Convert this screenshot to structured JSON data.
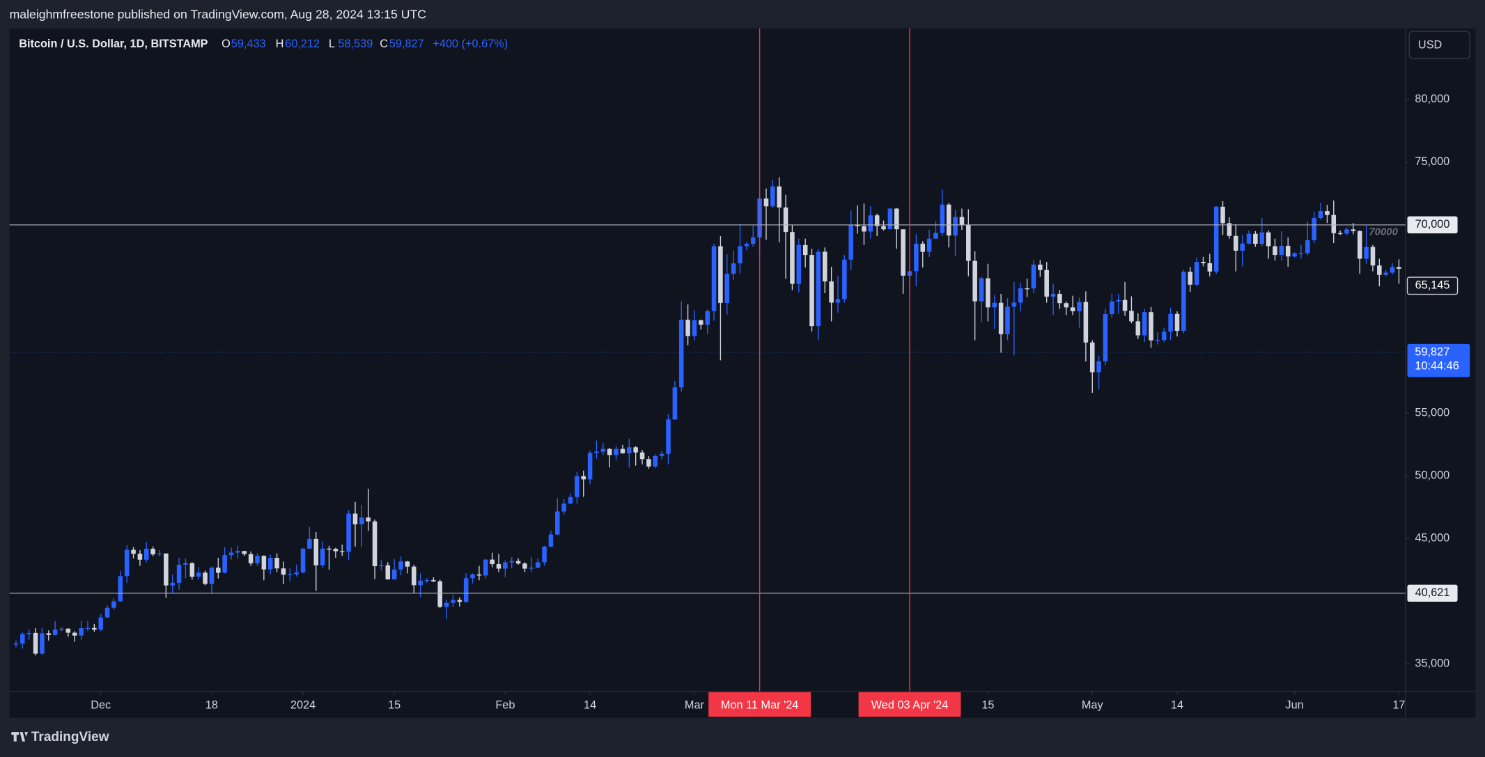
{
  "header": {
    "publisher": "maleighmfreestone published on TradingView.com, Aug 28, 2024 13:15 UTC"
  },
  "chart_data": {
    "type": "candlestick",
    "title": "Bitcoin / U.S. Dollar, 1D, BITSTAMP",
    "summary": {
      "labels": [
        "O",
        "H",
        "L",
        "C"
      ],
      "values": [
        59433,
        60212,
        58539,
        59827
      ],
      "value_labels": [
        "59,433",
        "60,212",
        "58,539",
        "59,827"
      ],
      "change": "+400 (+0.67%)"
    },
    "currency": "USD",
    "up_color": "#2962ff",
    "down_color": "#d1d4dc",
    "grid": false,
    "x": [
      "2023-11-18",
      "2023-11-19",
      "2023-11-20",
      "2023-11-21",
      "2023-11-22",
      "2023-11-23",
      "2023-11-24",
      "2023-11-25",
      "2023-11-26",
      "2023-11-27",
      "2023-11-28",
      "2023-11-29",
      "2023-11-30",
      "2023-12-01",
      "2023-12-02",
      "2023-12-03",
      "2023-12-04",
      "2023-12-05",
      "2023-12-06",
      "2023-12-07",
      "2023-12-08",
      "2023-12-09",
      "2023-12-10",
      "2023-12-11",
      "2023-12-12",
      "2023-12-13",
      "2023-12-14",
      "2023-12-15",
      "2023-12-16",
      "2023-12-17",
      "2023-12-18",
      "2023-12-19",
      "2023-12-20",
      "2023-12-21",
      "2023-12-22",
      "2023-12-23",
      "2023-12-24",
      "2023-12-25",
      "2023-12-26",
      "2023-12-27",
      "2023-12-28",
      "2023-12-29",
      "2023-12-30",
      "2023-12-31",
      "2024-01-01",
      "2024-01-02",
      "2024-01-03",
      "2024-01-04",
      "2024-01-05",
      "2024-01-06",
      "2024-01-07",
      "2024-01-08",
      "2024-01-09",
      "2024-01-10",
      "2024-01-11",
      "2024-01-12",
      "2024-01-13",
      "2024-01-14",
      "2024-01-15",
      "2024-01-16",
      "2024-01-17",
      "2024-01-18",
      "2024-01-19",
      "2024-01-20",
      "2024-01-21",
      "2024-01-22",
      "2024-01-23",
      "2024-01-24",
      "2024-01-25",
      "2024-01-26",
      "2024-01-27",
      "2024-01-28",
      "2024-01-29",
      "2024-01-30",
      "2024-01-31",
      "2024-02-01",
      "2024-02-02",
      "2024-02-03",
      "2024-02-04",
      "2024-02-05",
      "2024-02-06",
      "2024-02-07",
      "2024-02-08",
      "2024-02-09",
      "2024-02-10",
      "2024-02-11",
      "2024-02-12",
      "2024-02-13",
      "2024-02-14",
      "2024-02-15",
      "2024-02-16",
      "2024-02-17",
      "2024-02-18",
      "2024-02-19",
      "2024-02-20",
      "2024-02-21",
      "2024-02-22",
      "2024-02-23",
      "2024-02-24",
      "2024-02-25",
      "2024-02-26",
      "2024-02-27",
      "2024-02-28",
      "2024-02-29",
      "2024-03-01",
      "2024-03-02",
      "2024-03-03",
      "2024-03-04",
      "2024-03-05",
      "2024-03-06",
      "2024-03-07",
      "2024-03-08",
      "2024-03-09",
      "2024-03-10",
      "2024-03-11",
      "2024-03-12",
      "2024-03-13",
      "2024-03-14",
      "2024-03-15",
      "2024-03-16",
      "2024-03-17",
      "2024-03-18",
      "2024-03-19",
      "2024-03-20",
      "2024-03-21",
      "2024-03-22",
      "2024-03-23",
      "2024-03-24",
      "2024-03-25",
      "2024-03-26",
      "2024-03-27",
      "2024-03-28",
      "2024-03-29",
      "2024-03-30",
      "2024-03-31",
      "2024-04-01",
      "2024-04-02",
      "2024-04-03",
      "2024-04-04",
      "2024-04-05",
      "2024-04-06",
      "2024-04-07",
      "2024-04-08",
      "2024-04-09",
      "2024-04-10",
      "2024-04-11",
      "2024-04-12",
      "2024-04-13",
      "2024-04-14",
      "2024-04-15",
      "2024-04-16",
      "2024-04-17",
      "2024-04-18",
      "2024-04-19",
      "2024-04-20",
      "2024-04-21",
      "2024-04-22",
      "2024-04-23",
      "2024-04-24",
      "2024-04-25",
      "2024-04-26",
      "2024-04-27",
      "2024-04-28",
      "2024-04-29",
      "2024-04-30",
      "2024-05-01",
      "2024-05-02",
      "2024-05-03",
      "2024-05-04",
      "2024-05-05",
      "2024-05-06",
      "2024-05-07",
      "2024-05-08",
      "2024-05-09",
      "2024-05-10",
      "2024-05-11",
      "2024-05-12",
      "2024-05-13",
      "2024-05-14",
      "2024-05-15",
      "2024-05-16",
      "2024-05-17",
      "2024-05-18",
      "2024-05-19",
      "2024-05-20",
      "2024-05-21",
      "2024-05-22",
      "2024-05-23",
      "2024-05-24",
      "2024-05-25",
      "2024-05-26",
      "2024-05-27",
      "2024-05-28",
      "2024-05-29",
      "2024-05-30",
      "2024-05-31",
      "2024-06-01",
      "2024-06-02",
      "2024-06-03",
      "2024-06-04",
      "2024-06-05",
      "2024-06-06",
      "2024-06-07",
      "2024-06-08",
      "2024-06-09",
      "2024-06-10",
      "2024-06-11",
      "2024-06-12",
      "2024-06-13",
      "2024-06-14",
      "2024-06-15",
      "2024-06-16",
      "2024-06-17"
    ],
    "open": [
      36570,
      36600,
      37360,
      37450,
      35800,
      37420,
      37290,
      37720,
      37790,
      37470,
      37240,
      37830,
      37850,
      37720,
      38690,
      39460,
      39970,
      41980,
      44080,
      43770,
      43290,
      44170,
      43720,
      43790,
      41240,
      41450,
      42890,
      43020,
      41940,
      42260,
      41360,
      42660,
      42250,
      43660,
      43860,
      43990,
      43740,
      43010,
      43600,
      42520,
      43440,
      42600,
      42100,
      42140,
      42280,
      44180,
      44950,
      42850,
      44180,
      44160,
      43970,
      43930,
      46970,
      46120,
      46660,
      46350,
      42780,
      42850,
      41730,
      42510,
      43150,
      42740,
      41260,
      41620,
      41660,
      41570,
      39530,
      39850,
      40080,
      39930,
      41820,
      42120,
      42030,
      43300,
      42940,
      42580,
      43080,
      43190,
      42990,
      42580,
      42660,
      43090,
      44340,
      45300,
      47140,
      47770,
      48290,
      49960,
      49700,
      51810,
      51910,
      52130,
      51640,
      52130,
      51780,
      52260,
      51850,
      51320,
      50730,
      51570,
      51730,
      54480,
      57040,
      62430,
      61130,
      62390,
      62030,
      63120,
      68300,
      63780,
      66100,
      66930,
      68300,
      68490,
      69000,
      72100,
      71480,
      73070,
      71390,
      69430,
      65300,
      68390,
      67600,
      61930,
      67860,
      65490,
      63800,
      64080,
      67230,
      69990,
      69900,
      69470,
      70760,
      69900,
      69650,
      71300,
      69650,
      65950,
      66300,
      68500,
      67850,
      68900,
      69360,
      71620,
      69150,
      70630,
      70000,
      67130,
      63900,
      65740,
      63420,
      63790,
      61280,
      63470,
      63800,
      64940,
      64930,
      66830,
      66400,
      64280,
      64500,
      63760,
      63420,
      63110,
      63850,
      60620,
      58250,
      59120,
      62890,
      63890,
      64010,
      63140,
      62310,
      61190,
      63040,
      60790,
      60820,
      61480,
      62900,
      61550,
      66260,
      65230,
      67050,
      66940,
      66280,
      71450,
      70140,
      69120,
      67940,
      68510,
      69290,
      68490,
      69400,
      68300,
      67600,
      68330,
      67480,
      67730,
      67740,
      68780,
      70550,
      71100,
      70790,
      69340,
      69310,
      69640,
      69510,
      67300,
      68240,
      66760,
      66010,
      66190,
      66640
    ],
    "high": [
      36850,
      37500,
      37750,
      37850,
      37850,
      37650,
      38400,
      37900,
      37830,
      37600,
      38400,
      38400,
      38170,
      38950,
      39650,
      40200,
      42400,
      44450,
      44300,
      44050,
      44700,
      44350,
      44050,
      43800,
      42100,
      43450,
      43400,
      43100,
      42700,
      42420,
      42750,
      43450,
      44300,
      44250,
      44400,
      44000,
      43950,
      43800,
      43650,
      43700,
      43800,
      43150,
      42600,
      42900,
      44200,
      45900,
      45500,
      44750,
      44400,
      44250,
      44500,
      47250,
      47900,
      47650,
      48950,
      46500,
      43300,
      43100,
      43350,
      43550,
      43200,
      42900,
      42200,
      41850,
      41880,
      41700,
      40100,
      40500,
      40300,
      42200,
      42200,
      42800,
      43350,
      43850,
      43750,
      43250,
      43500,
      43400,
      43100,
      43500,
      43400,
      44400,
      45600,
      48200,
      48150,
      48550,
      50300,
      50400,
      52000,
      52800,
      52600,
      52200,
      52350,
      52450,
      52950,
      52350,
      52050,
      51550,
      51700,
      51950,
      54900,
      57550,
      63900,
      63650,
      63200,
      62450,
      63250,
      68500,
      69100,
      67650,
      67950,
      70100,
      68650,
      70000,
      72800,
      72900,
      73600,
      73800,
      72400,
      70000,
      68900,
      68900,
      68100,
      68100,
      68200,
      66650,
      65950,
      67600,
      71150,
      71550,
      71700,
      71500,
      70900,
      70350,
      71350,
      71350,
      69650,
      66900,
      69250,
      68700,
      69600,
      70300,
      72800,
      71750,
      71200,
      71300,
      71250,
      67900,
      65850,
      66900,
      64400,
      64500,
      64150,
      65450,
      65400,
      65700,
      67200,
      67200,
      67050,
      65300,
      64800,
      63900,
      64350,
      64200,
      64700,
      60800,
      59550,
      63300,
      64500,
      64500,
      65450,
      64300,
      62950,
      63300,
      63450,
      61450,
      61800,
      63400,
      63100,
      66400,
      66650,
      67400,
      67450,
      67700,
      71500,
      71900,
      70600,
      70050,
      69200,
      69550,
      69500,
      70550,
      69550,
      68900,
      69500,
      69000,
      67800,
      68400,
      70250,
      71050,
      71750,
      71600,
      71950,
      69550,
      69800,
      70150,
      69550,
      69950,
      68400,
      67300,
      66400,
      66950,
      67250
    ],
    "low": [
      36300,
      36200,
      36900,
      35650,
      35700,
      36850,
      37250,
      37600,
      37150,
      36750,
      36900,
      37600,
      37550,
      37600,
      38650,
      39300,
      39950,
      41450,
      43400,
      42800,
      43080,
      43580,
      43550,
      40250,
      40650,
      40900,
      41800,
      41700,
      41700,
      41250,
      40550,
      41800,
      42200,
      43300,
      43400,
      43600,
      42800,
      42800,
      41650,
      42150,
      42300,
      41350,
      41550,
      41950,
      42200,
      44150,
      40800,
      42650,
      42500,
      43450,
      43600,
      43250,
      44350,
      44300,
      45600,
      41750,
      42450,
      41700,
      41700,
      42050,
      42200,
      40650,
      40300,
      41450,
      41500,
      39450,
      38550,
      39500,
      39550,
      39850,
      41400,
      41650,
      41800,
      42700,
      42300,
      41900,
      42600,
      42900,
      42300,
      42300,
      42600,
      42800,
      44300,
      45250,
      46900,
      47700,
      47750,
      48300,
      49300,
      51350,
      51650,
      50650,
      51200,
      51750,
      50650,
      50800,
      50900,
      50550,
      50600,
      51300,
      50900,
      54450,
      56700,
      60400,
      60800,
      61650,
      61300,
      62350,
      59200,
      62850,
      65600,
      66100,
      68000,
      68250,
      67200,
      68800,
      71350,
      68600,
      65700,
      64800,
      64600,
      66600,
      61500,
      60800,
      64550,
      62300,
      63000,
      63800,
      66400,
      69300,
      68400,
      68900,
      69100,
      69550,
      69650,
      68100,
      64500,
      64500,
      65100,
      66600,
      67450,
      68900,
      69100,
      68200,
      67500,
      69600,
      65900,
      60800,
      62250,
      62300,
      61700,
      59800,
      60800,
      59600,
      63100,
      64250,
      64550,
      65850,
      63800,
      62800,
      63300,
      62800,
      62800,
      61800,
      59100,
      56600,
      56900,
      58800,
      62600,
      62900,
      62750,
      62150,
      60900,
      60650,
      60200,
      60450,
      60650,
      60800,
      61100,
      61350,
      64650,
      65100,
      66700,
      65900,
      66100,
      69200,
      68900,
      66300,
      66700,
      68450,
      68250,
      68300,
      67300,
      67150,
      67150,
      66650,
      67400,
      67300,
      67600,
      68550,
      70400,
      70150,
      68550,
      69200,
      69150,
      69250,
      66100,
      66900,
      66300,
      65100,
      65900,
      66050,
      65300
    ],
    "close": [
      36600,
      37360,
      37450,
      35800,
      37420,
      37290,
      37720,
      37790,
      37470,
      37240,
      37830,
      37850,
      37720,
      38690,
      39460,
      39970,
      41980,
      44080,
      43770,
      43290,
      44170,
      43720,
      43790,
      41240,
      41450,
      42890,
      43020,
      41940,
      42260,
      41360,
      42660,
      42250,
      43660,
      43860,
      43990,
      43740,
      43010,
      43600,
      42520,
      43440,
      42600,
      42100,
      42140,
      42280,
      44180,
      44950,
      42850,
      44180,
      44160,
      43970,
      43930,
      46970,
      46120,
      46660,
      46350,
      42780,
      42850,
      41730,
      42510,
      43150,
      42740,
      41260,
      41620,
      41660,
      41570,
      39530,
      39850,
      40080,
      39930,
      41820,
      42120,
      42030,
      43300,
      42940,
      42580,
      43080,
      43190,
      42990,
      42580,
      42660,
      43090,
      44340,
      45300,
      47140,
      47770,
      48290,
      49960,
      49700,
      51810,
      51910,
      52130,
      51640,
      52130,
      51780,
      52260,
      51850,
      51320,
      50730,
      51570,
      51730,
      54480,
      57040,
      62430,
      61130,
      62390,
      62030,
      63120,
      68300,
      63780,
      66100,
      66930,
      68300,
      68490,
      69000,
      72100,
      71480,
      73070,
      71390,
      69430,
      65300,
      68390,
      67600,
      61930,
      67860,
      65490,
      63800,
      64080,
      67230,
      69990,
      69900,
      69470,
      70760,
      69900,
      69650,
      71300,
      69650,
      65950,
      66300,
      68500,
      67850,
      68900,
      69360,
      71620,
      69150,
      70630,
      70000,
      67130,
      63900,
      65740,
      63420,
      63790,
      61280,
      63470,
      63800,
      64940,
      64930,
      66830,
      66400,
      64280,
      64500,
      63760,
      63420,
      63110,
      63850,
      60620,
      58250,
      59120,
      62890,
      63890,
      64010,
      63140,
      62310,
      61190,
      63040,
      60790,
      60820,
      61480,
      62900,
      61550,
      66260,
      65230,
      67050,
      66940,
      66280,
      71450,
      70140,
      69120,
      67940,
      68510,
      69290,
      68490,
      69400,
      68300,
      67600,
      68330,
      67480,
      67730,
      67740,
      68780,
      70550,
      71100,
      70790,
      69340,
      69310,
      69640,
      69510,
      67300,
      68240,
      66760,
      66010,
      66190,
      66640,
      66500
    ],
    "xlim": [
      "2023-11-17",
      "2024-06-18"
    ],
    "xticks": [
      {
        "value": "2023-12-01",
        "label": "Dec"
      },
      {
        "value": "2023-12-18",
        "label": "18"
      },
      {
        "value": "2024-01-01",
        "label": "2024"
      },
      {
        "value": "2024-01-15",
        "label": "15"
      },
      {
        "value": "2024-02-01",
        "label": "Feb"
      },
      {
        "value": "2024-02-14",
        "label": "14"
      },
      {
        "value": "2024-03-01",
        "label": "Mar"
      },
      {
        "value": "2024-04-15",
        "label": "15"
      },
      {
        "value": "2024-05-01",
        "label": "May"
      },
      {
        "value": "2024-05-14",
        "label": "14"
      },
      {
        "value": "2024-06-01",
        "label": "Jun"
      },
      {
        "value": "2024-06-17",
        "label": "17"
      }
    ],
    "ylim": [
      32800,
      85670
    ],
    "yticks": [
      {
        "value": 35000,
        "label": "35,000"
      },
      {
        "value": 45000,
        "label": "45,000"
      },
      {
        "value": 50000,
        "label": "50,000"
      },
      {
        "value": 55000,
        "label": "55,000"
      },
      {
        "value": 75000,
        "label": "75,000"
      },
      {
        "value": 80000,
        "label": "80,000"
      }
    ],
    "hlines": [
      {
        "value": 70000,
        "label": "70,000",
        "text": "70000"
      },
      {
        "value": 40621,
        "label": "40,621"
      }
    ],
    "price_labels": [
      {
        "value": 65145,
        "label": "65,145"
      }
    ],
    "last_price": {
      "value": 59827,
      "label": "59,827",
      "countdown": "10:44:46"
    },
    "vlines": [
      {
        "value": "2024-03-11",
        "label": "Mon 11 Mar '24"
      },
      {
        "value": "2024-04-03",
        "label": "Wed 03 Apr '24"
      }
    ]
  },
  "footer": {
    "brand": "TradingView"
  }
}
